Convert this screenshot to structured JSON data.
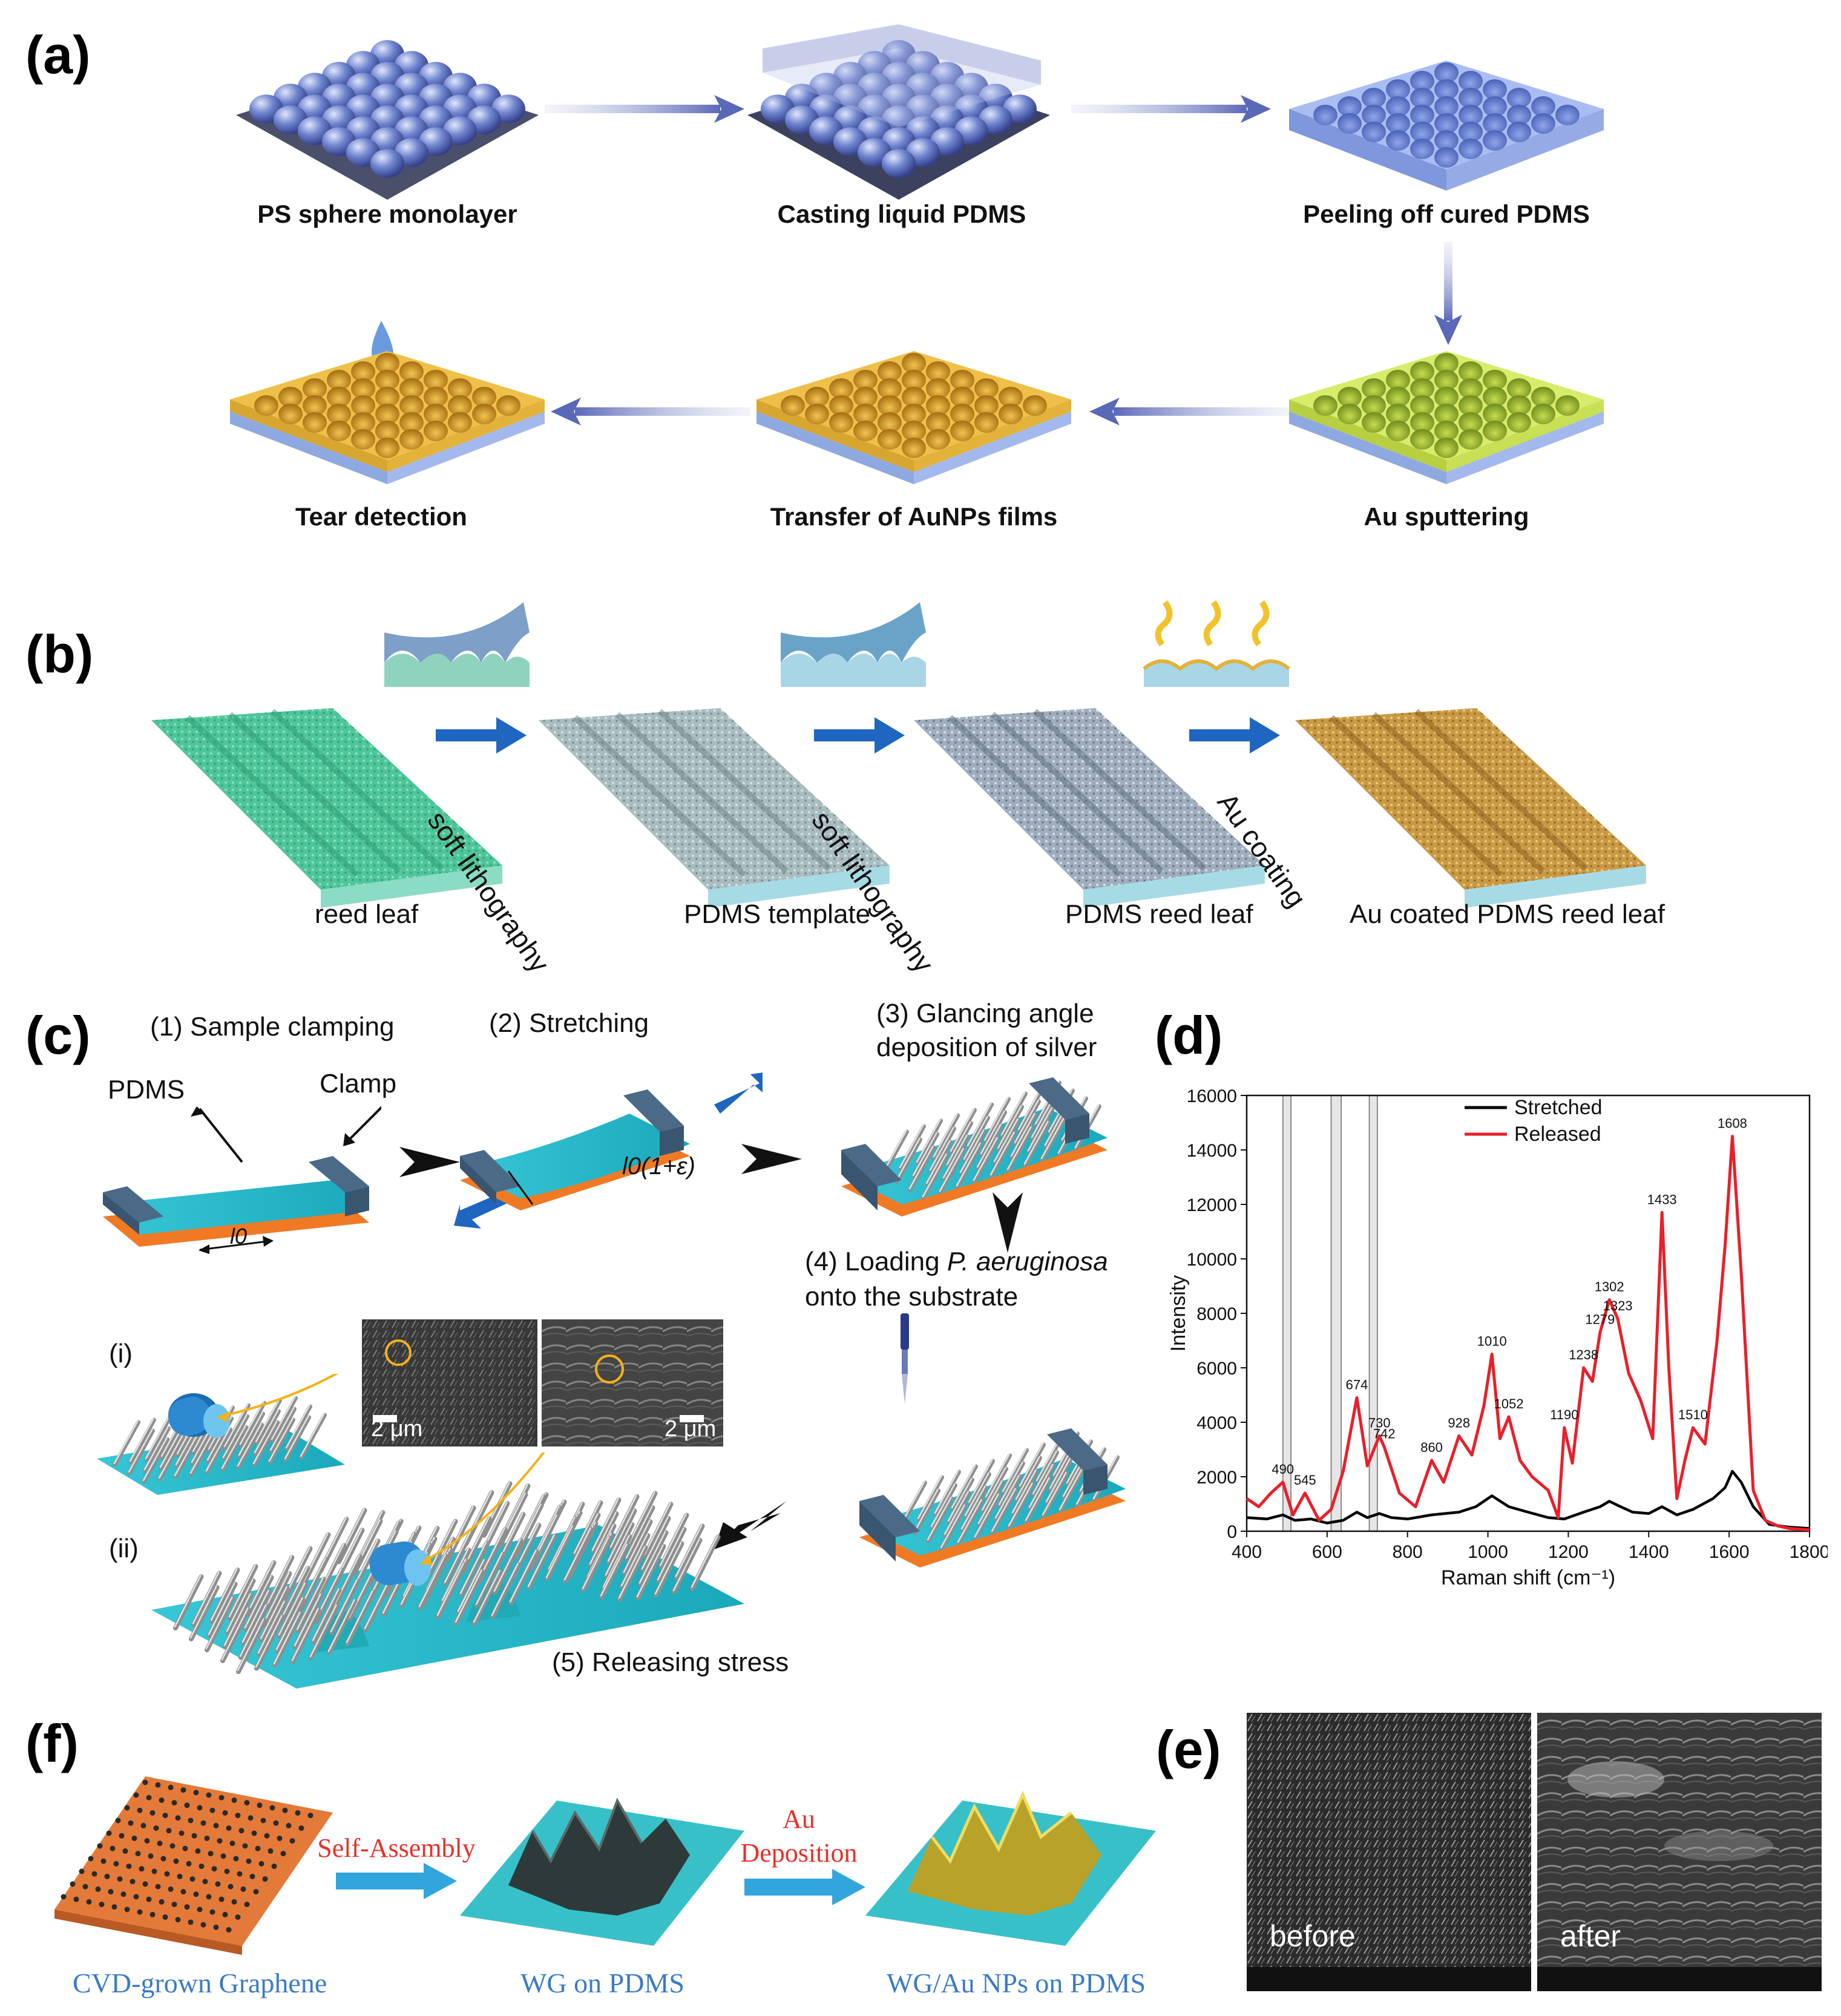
{
  "panels": {
    "a": {
      "label": "(a)",
      "steps": [
        "PS sphere monolayer",
        "Casting liquid PDMS",
        "Peeling off cured PDMS",
        "Au sputtering",
        "Transfer of AuNPs films",
        "Tear detection"
      ]
    },
    "b": {
      "label": "(b)",
      "stages": [
        "reed leaf",
        "PDMS template",
        "PDMS reed leaf",
        "Au coated PDMS reed leaf"
      ],
      "arrows": [
        "soft lithography",
        "soft lithography",
        "Au coating"
      ]
    },
    "c": {
      "label": "(c)",
      "step1": "(1) Sample clamping",
      "step2": "(2) Stretching",
      "step3_line1": "(3) Glancing angle",
      "step3_line2": "deposition of silver",
      "step4_prefix": "(4) Loading ",
      "step4_species": "P. aeruginosa",
      "step4_line2": "onto the substrate",
      "step5": "(5) Releasing stress",
      "pdms_label": "PDMS",
      "clamp_label": "Clamp",
      "length_label": "l0",
      "stretched_length_label": "l0(1+ε)",
      "case_i": "(i)",
      "case_ii": "(ii)",
      "scale_bar_1": "2 μm",
      "scale_bar_2": "2 μm"
    },
    "d": {
      "label": "(d)"
    },
    "e": {
      "label": "(e)",
      "left_caption": "before",
      "right_caption": "after"
    },
    "f": {
      "label": "(f)",
      "stages": [
        "CVD-grown Graphene",
        "WG on PDMS",
        "WG/Au NPs on PDMS"
      ],
      "arrow1": "Self-Assembly",
      "arrow2_line1": "Au",
      "arrow2_line2": "Deposition"
    }
  },
  "chart_data": {
    "type": "line",
    "xlabel": "Raman shift (cm⁻¹)",
    "ylabel": "Intensity",
    "xlim": [
      400,
      1800
    ],
    "ylim": [
      0,
      16000
    ],
    "xticks": [
      400,
      600,
      800,
      1000,
      1200,
      1400,
      1600,
      1800
    ],
    "yticks": [
      0,
      2000,
      4000,
      6000,
      8000,
      10000,
      12000,
      14000,
      16000
    ],
    "legend_position": "top-center",
    "shaded_bands": [
      [
        490,
        510
      ],
      [
        610,
        635
      ],
      [
        705,
        725
      ]
    ],
    "series": [
      {
        "name": "Stretched",
        "color": "#000000",
        "x": [
          400,
          450,
          490,
          520,
          560,
          600,
          640,
          674,
          700,
          730,
          760,
          800,
          860,
          928,
          970,
          1010,
          1052,
          1100,
          1150,
          1190,
          1238,
          1279,
          1302,
          1323,
          1360,
          1400,
          1433,
          1470,
          1510,
          1560,
          1590,
          1608,
          1630,
          1660,
          1700,
          1750,
          1800
        ],
        "values": [
          500,
          450,
          600,
          400,
          450,
          300,
          400,
          700,
          500,
          650,
          500,
          450,
          600,
          700,
          900,
          1300,
          900,
          700,
          500,
          450,
          700,
          900,
          1100,
          950,
          700,
          650,
          900,
          600,
          800,
          1200,
          1600,
          2200,
          1800,
          900,
          250,
          150,
          100
        ]
      },
      {
        "name": "Released",
        "color": "#e8202a",
        "x": [
          400,
          430,
          460,
          490,
          515,
          545,
          580,
          610,
          640,
          674,
          700,
          730,
          742,
          780,
          820,
          860,
          890,
          928,
          960,
          990,
          1010,
          1030,
          1052,
          1080,
          1110,
          1150,
          1175,
          1190,
          1210,
          1238,
          1260,
          1279,
          1302,
          1323,
          1350,
          1380,
          1410,
          1433,
          1450,
          1470,
          1490,
          1510,
          1540,
          1570,
          1590,
          1608,
          1630,
          1660,
          1690,
          1720,
          1750,
          1800
        ],
        "values": [
          1200,
          900,
          1400,
          1800,
          600,
          1400,
          400,
          800,
          2200,
          4900,
          2400,
          3500,
          3100,
          1400,
          900,
          2600,
          1800,
          3500,
          2800,
          4600,
          6500,
          3400,
          4200,
          2600,
          2000,
          1500,
          500,
          3800,
          2500,
          6000,
          5500,
          7300,
          8500,
          7800,
          5800,
          4800,
          3400,
          11700,
          6000,
          1200,
          2600,
          3800,
          3200,
          7000,
          10500,
          14500,
          9500,
          1500,
          400,
          200,
          100,
          50
        ]
      }
    ],
    "peak_labels": [
      {
        "x": 490,
        "y": 1800,
        "text": "490"
      },
      {
        "x": 545,
        "y": 1400,
        "text": "545"
      },
      {
        "x": 674,
        "y": 4900,
        "text": "674"
      },
      {
        "x": 730,
        "y": 3500,
        "text": "730"
      },
      {
        "x": 742,
        "y": 3100,
        "text": "742"
      },
      {
        "x": 860,
        "y": 2600,
        "text": "860"
      },
      {
        "x": 928,
        "y": 3500,
        "text": "928"
      },
      {
        "x": 1010,
        "y": 6500,
        "text": "1010"
      },
      {
        "x": 1052,
        "y": 4200,
        "text": "1052"
      },
      {
        "x": 1190,
        "y": 3800,
        "text": "1190"
      },
      {
        "x": 1238,
        "y": 6000,
        "text": "1238"
      },
      {
        "x": 1279,
        "y": 7300,
        "text": "1279"
      },
      {
        "x": 1302,
        "y": 8500,
        "text": "1302"
      },
      {
        "x": 1323,
        "y": 7800,
        "text": "1323"
      },
      {
        "x": 1433,
        "y": 11700,
        "text": "1433"
      },
      {
        "x": 1510,
        "y": 3800,
        "text": "1510"
      },
      {
        "x": 1608,
        "y": 14500,
        "text": "1608"
      }
    ]
  }
}
